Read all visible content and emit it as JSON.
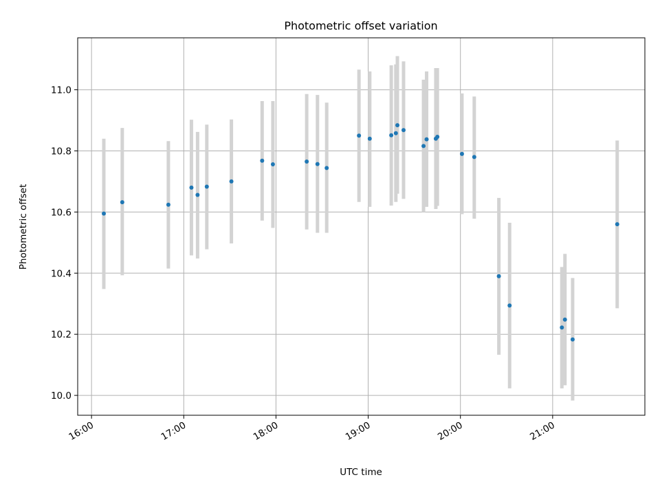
{
  "chart_data": {
    "type": "scatter",
    "title": "Photometric offset variation",
    "xlabel": "UTC time",
    "ylabel": "Photometric offset",
    "grid": true,
    "x_ticks": [
      "16:00",
      "17:00",
      "18:00",
      "19:00",
      "20:00",
      "21:00"
    ],
    "y_ticks": [
      "10.0",
      "10.2",
      "10.4",
      "10.6",
      "10.8",
      "11.0"
    ],
    "xlim": [
      "15:51",
      "22:00"
    ],
    "ylim": [
      9.935,
      11.17
    ],
    "colors": {
      "point": "#1f77b4",
      "errorbar": "#d3d3d3",
      "grid": "#b0b0b0"
    },
    "series": [
      {
        "points": [
          {
            "x": "16:08",
            "y": 10.595,
            "low": 10.348,
            "high": 10.84
          },
          {
            "x": "16:20",
            "y": 10.632,
            "low": 10.393,
            "high": 10.875
          },
          {
            "x": "16:50",
            "y": 10.624,
            "low": 10.415,
            "high": 10.832
          },
          {
            "x": "17:05",
            "y": 10.68,
            "low": 10.458,
            "high": 10.902
          },
          {
            "x": "17:09",
            "y": 10.656,
            "low": 10.448,
            "high": 10.862
          },
          {
            "x": "17:15",
            "y": 10.683,
            "low": 10.478,
            "high": 10.886
          },
          {
            "x": "17:31",
            "y": 10.7,
            "low": 10.497,
            "high": 10.903
          },
          {
            "x": "17:51",
            "y": 10.768,
            "low": 10.572,
            "high": 10.963
          },
          {
            "x": "17:58",
            "y": 10.756,
            "low": 10.548,
            "high": 10.963
          },
          {
            "x": "18:20",
            "y": 10.765,
            "low": 10.543,
            "high": 10.986
          },
          {
            "x": "18:27",
            "y": 10.757,
            "low": 10.532,
            "high": 10.983
          },
          {
            "x": "18:33",
            "y": 10.744,
            "low": 10.532,
            "high": 10.958
          },
          {
            "x": "18:54",
            "y": 10.85,
            "low": 10.633,
            "high": 11.066
          },
          {
            "x": "19:01",
            "y": 10.84,
            "low": 10.617,
            "high": 11.06
          },
          {
            "x": "19:15",
            "y": 10.851,
            "low": 10.621,
            "high": 11.08
          },
          {
            "x": "19:18",
            "y": 10.858,
            "low": 10.633,
            "high": 11.083
          },
          {
            "x": "19:19",
            "y": 10.884,
            "low": 10.66,
            "high": 11.11
          },
          {
            "x": "19:23",
            "y": 10.868,
            "low": 10.643,
            "high": 11.093
          },
          {
            "x": "19:36",
            "y": 10.816,
            "low": 10.6,
            "high": 11.033
          },
          {
            "x": "19:38",
            "y": 10.838,
            "low": 10.617,
            "high": 11.06
          },
          {
            "x": "19:44",
            "y": 10.84,
            "low": 10.61,
            "high": 11.071
          },
          {
            "x": "19:45",
            "y": 10.846,
            "low": 10.62,
            "high": 11.071
          },
          {
            "x": "20:01",
            "y": 10.79,
            "low": 10.593,
            "high": 10.988
          },
          {
            "x": "20:09",
            "y": 10.78,
            "low": 10.578,
            "high": 10.978
          },
          {
            "x": "20:25",
            "y": 10.39,
            "low": 10.133,
            "high": 10.646
          },
          {
            "x": "20:32",
            "y": 10.294,
            "low": 10.023,
            "high": 10.565
          },
          {
            "x": "21:06",
            "y": 10.222,
            "low": 10.023,
            "high": 10.42
          },
          {
            "x": "21:08",
            "y": 10.248,
            "low": 10.033,
            "high": 10.463
          },
          {
            "x": "21:13",
            "y": 10.183,
            "low": 9.983,
            "high": 10.384
          },
          {
            "x": "21:42",
            "y": 10.56,
            "low": 10.285,
            "high": 10.834
          }
        ]
      }
    ]
  }
}
